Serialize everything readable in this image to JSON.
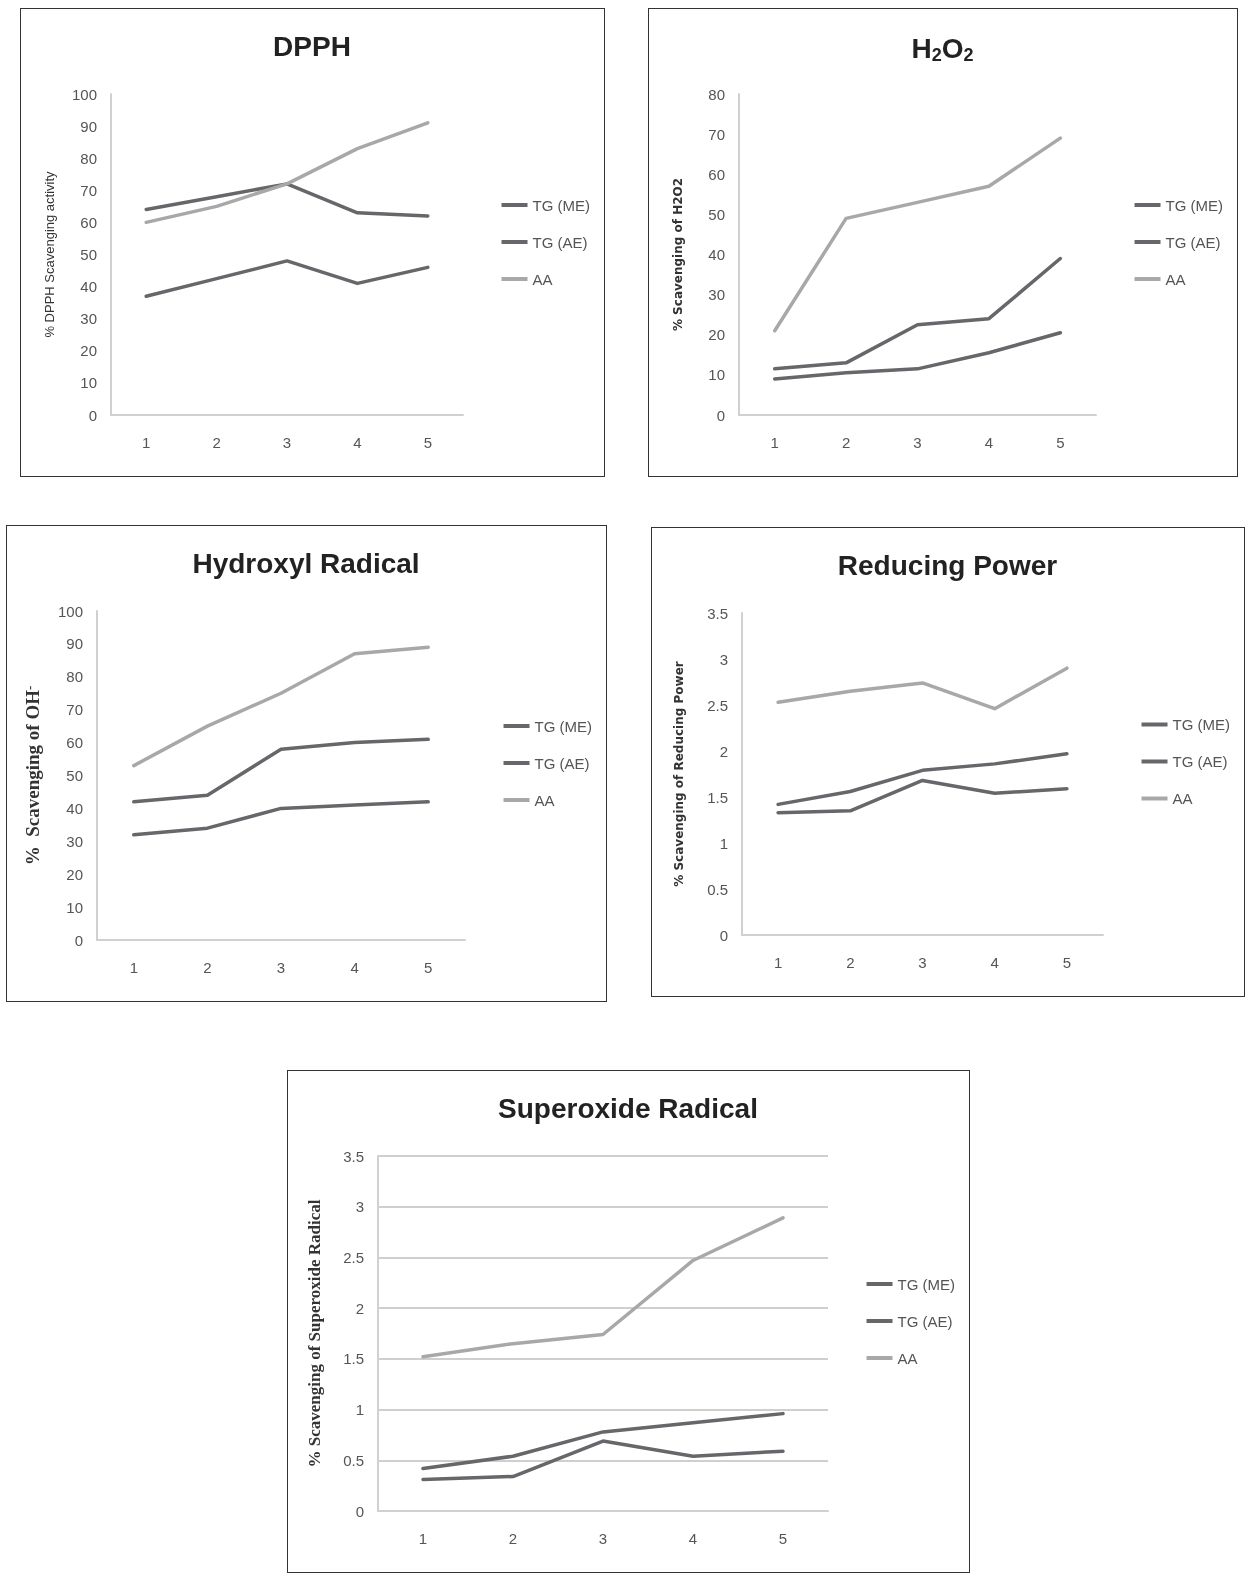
{
  "chart_data": [
    {
      "type": "line",
      "title": "DPPH",
      "ylabel": "% DPPH Scavenging activity",
      "categories": [
        "1",
        "2",
        "3",
        "4",
        "5"
      ],
      "ylim": [
        0,
        100
      ],
      "yticks": [
        0,
        10,
        20,
        30,
        40,
        50,
        60,
        70,
        80,
        90,
        100
      ],
      "grid": false,
      "legend": "right",
      "marker": "none",
      "line_style": "solid",
      "series": [
        {
          "name": "TG (ME)",
          "color": "#67676b",
          "values": [
            64,
            68,
            72,
            63,
            62
          ]
        },
        {
          "name": "TG (AE)",
          "color": "#67676b",
          "values": [
            37,
            42.5,
            48,
            41,
            46
          ]
        },
        {
          "name": "AA",
          "color": "#a8a8a8",
          "values": [
            60,
            65,
            72,
            83,
            91
          ]
        }
      ]
    },
    {
      "type": "line",
      "title": "H$_{2}$O$_{2}$",
      "ylabel": "% Scavenging of H2O2",
      "categories": [
        "1",
        "2",
        "3",
        "4",
        "5"
      ],
      "ylim": [
        0,
        80
      ],
      "yticks": [
        0,
        10,
        20,
        30,
        40,
        50,
        60,
        70,
        80
      ],
      "grid": false,
      "legend": "right",
      "marker": "none",
      "line_style": "solid",
      "series": [
        {
          "name": "TG (ME)",
          "color": "#67676b",
          "values": [
            11.5,
            13,
            22.5,
            24,
            39
          ]
        },
        {
          "name": "TG (AE)",
          "color": "#67676b",
          "values": [
            9,
            10.5,
            11.5,
            15.5,
            20.5
          ]
        },
        {
          "name": "AA",
          "color": "#a8a8a8",
          "values": [
            21,
            49,
            53,
            57,
            69
          ]
        }
      ]
    },
    {
      "type": "line",
      "title": "Hydroxyl Radical",
      "ylabel": "%  Scavenging of OH$^{-}$",
      "categories": [
        "1",
        "2",
        "3",
        "4",
        "5"
      ],
      "ylim": [
        0,
        100
      ],
      "yticks": [
        0,
        10,
        20,
        30,
        40,
        50,
        60,
        70,
        80,
        90,
        100
      ],
      "grid": false,
      "legend": "right",
      "marker": "none",
      "line_style": "solid",
      "series": [
        {
          "name": "TG (ME)",
          "color": "#67676b",
          "values": [
            42,
            44,
            58,
            60,
            61
          ]
        },
        {
          "name": "TG (AE)",
          "color": "#67676b",
          "values": [
            32,
            34,
            40,
            41,
            42
          ]
        },
        {
          "name": "AA",
          "color": "#a8a8a8",
          "values": [
            53,
            65,
            75,
            87,
            89
          ]
        }
      ]
    },
    {
      "type": "line",
      "title": "Reducing Power",
      "ylabel": "% Scavenging of Reducing Power",
      "categories": [
        "1",
        "2",
        "3",
        "4",
        "5"
      ],
      "ylim": [
        0,
        3.5
      ],
      "yticks": [
        0,
        0.5,
        1,
        1.5,
        2,
        2.5,
        3,
        3.5
      ],
      "grid": false,
      "legend": "right",
      "marker": "none",
      "line_style": "solid",
      "series": [
        {
          "name": "TG (ME)",
          "color": "#67676b",
          "values": [
            1.42,
            1.56,
            1.79,
            1.86,
            1.97
          ]
        },
        {
          "name": "TG (AE)",
          "color": "#67676b",
          "values": [
            1.33,
            1.35,
            1.68,
            1.54,
            1.59
          ]
        },
        {
          "name": "AA",
          "color": "#a8a8a8",
          "values": [
            2.53,
            2.65,
            2.74,
            2.46,
            2.9
          ]
        }
      ]
    },
    {
      "type": "line",
      "title": "Superoxide Radical",
      "ylabel": "% Scavenging of Superoxide Radical",
      "categories": [
        "1",
        "2",
        "3",
        "4",
        "5"
      ],
      "ylim": [
        0,
        3.5
      ],
      "yticks": [
        0,
        0.5,
        1,
        1.5,
        2,
        2.5,
        3,
        3.5
      ],
      "grid": "y",
      "legend": "right",
      "marker": "none",
      "line_style": "solid",
      "series": [
        {
          "name": "TG (ME)",
          "color": "#67676b",
          "values": [
            0.42,
            0.54,
            0.78,
            0.87,
            0.96
          ]
        },
        {
          "name": "TG (AE)",
          "color": "#67676b",
          "values": [
            0.31,
            0.34,
            0.69,
            0.54,
            0.59
          ]
        },
        {
          "name": "AA",
          "color": "#a8a8a8",
          "values": [
            1.52,
            1.65,
            1.74,
            2.47,
            2.89
          ]
        }
      ]
    }
  ]
}
